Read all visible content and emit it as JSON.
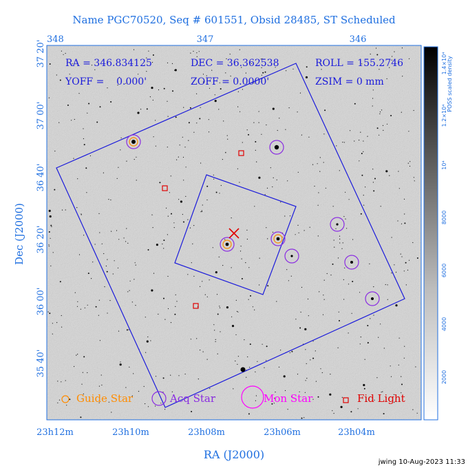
{
  "title": "Name PGC70520, Seq # 601551, Obsid 28485, ST Scheduled",
  "readouts": {
    "ra": "RA = 346.834125",
    "dec": "DEC = 36.362538",
    "roll": "ROLL = 155.2746",
    "yoff": "YOFF =    0.000'",
    "zoff": "ZOFF = 0.0000'",
    "zsim": "ZSIM = 0 mm"
  },
  "top_axis_ticks": [
    "348",
    "347",
    "346"
  ],
  "left_axis_ticks": [
    "37 20'",
    "37 00'",
    "36 40'",
    "36 20'",
    "36 00'",
    "35 40'"
  ],
  "bottom_axis_ticks": [
    "23h12m",
    "23h10m",
    "23h08m",
    "23h06m",
    "23h04m"
  ],
  "xlabel": "RA (J2000)",
  "ylabel": "Dec (J2000)",
  "colorbar": {
    "label": "POSS scaled density",
    "ticks": [
      "2000",
      "4000",
      "6000",
      "8000",
      "10⁴",
      "1.2×10⁴",
      "1.4×10⁴"
    ]
  },
  "legend": [
    {
      "label": "Guide Star",
      "color": "#ff8c00",
      "symbol": "small-circle"
    },
    {
      "label": "Acq Star",
      "color": "#8a2be2",
      "symbol": "circle"
    },
    {
      "label": "Mon Star",
      "color": "#ff00ff",
      "symbol": "large-circle"
    },
    {
      "label": "Fid Light",
      "color": "#e00000",
      "symbol": "square"
    }
  ],
  "colors": {
    "axis": "#1f6fe0",
    "outline": "#1a1adb",
    "target": "#e00000"
  },
  "stamp": "jwing 10-Aug-2023 11:33"
}
